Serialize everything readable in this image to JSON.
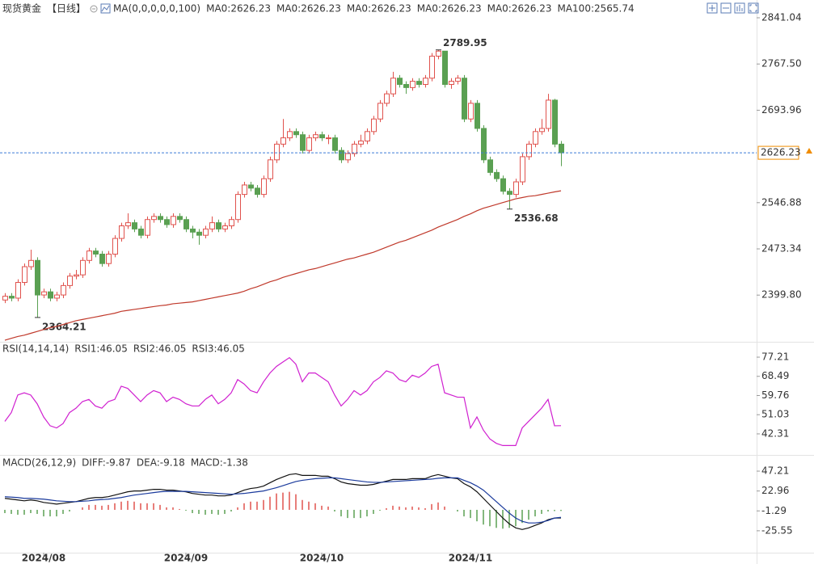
{
  "chart_data": [
    {
      "type": "candlestick",
      "header": [
        {
          "text": "现货黄金",
          "color": "#222222"
        },
        {
          "text": "【日线】",
          "color": "#f08c00"
        },
        {
          "text": "MA(0,0,0,0,0,100)",
          "color": "#222222"
        },
        {
          "text": "MA0:2626.23",
          "color": "#222222"
        },
        {
          "text": "MA0:2626.23",
          "color": "#1a3a9c"
        },
        {
          "text": "MA0:2626.23",
          "color": "#e040e0"
        },
        {
          "text": "MA0:2626.23",
          "color": "#f0a030"
        },
        {
          "text": "MA0:2626.23",
          "color": "#888888"
        },
        {
          "text": "MA100:2565.74",
          "color": "#d9534f"
        }
      ],
      "categories": [
        null,
        null,
        null,
        null,
        null,
        null,
        "2024/08",
        null,
        null,
        null,
        null,
        null,
        null,
        null,
        null,
        null,
        null,
        null,
        null,
        null,
        null,
        null,
        null,
        null,
        null,
        null,
        null,
        null,
        "2024/09",
        null,
        null,
        null,
        null,
        null,
        null,
        null,
        null,
        null,
        null,
        null,
        null,
        null,
        null,
        null,
        null,
        null,
        null,
        null,
        null,
        "2024/10",
        null,
        null,
        null,
        null,
        null,
        null,
        null,
        null,
        null,
        null,
        null,
        null,
        null,
        null,
        null,
        null,
        null,
        null,
        null,
        null,
        null,
        null,
        "2024/11",
        null,
        null,
        null,
        null,
        null,
        null,
        null,
        null,
        null,
        null,
        null,
        null,
        null,
        null
      ],
      "open": [
        2392,
        2398,
        2395,
        2420,
        2445,
        2455,
        2400,
        2405,
        2395,
        2400,
        2415,
        2430,
        2432,
        2455,
        2470,
        2465,
        2450,
        2465,
        2490,
        2510,
        2515,
        2505,
        2495,
        2520,
        2525,
        2520,
        2512,
        2525,
        2520,
        2505,
        2500,
        2495,
        2505,
        2515,
        2505,
        2510,
        2520,
        2560,
        2575,
        2570,
        2560,
        2585,
        2615,
        2640,
        2650,
        2660,
        2655,
        2630,
        2650,
        2655,
        2650,
        2650,
        2630,
        2615,
        2625,
        2640,
        2645,
        2660,
        2680,
        2705,
        2720,
        2745,
        2735,
        2730,
        2740,
        2735,
        2745,
        2780,
        2788,
        2735,
        2740,
        2745,
        2680,
        2705,
        2665,
        2615,
        2595,
        2585,
        2565,
        2560,
        2580,
        2620,
        2640,
        2660,
        2665,
        2710,
        2640
      ],
      "high": [
        2403,
        2403,
        2425,
        2450,
        2472,
        2460,
        2410,
        2410,
        2405,
        2420,
        2435,
        2440,
        2460,
        2475,
        2475,
        2470,
        2470,
        2495,
        2515,
        2530,
        2520,
        2510,
        2525,
        2530,
        2530,
        2525,
        2530,
        2530,
        2525,
        2510,
        2505,
        2510,
        2525,
        2520,
        2515,
        2525,
        2565,
        2580,
        2580,
        2575,
        2590,
        2620,
        2645,
        2680,
        2665,
        2665,
        2660,
        2655,
        2660,
        2660,
        2655,
        2655,
        2635,
        2630,
        2645,
        2655,
        2665,
        2685,
        2710,
        2725,
        2755,
        2750,
        2740,
        2745,
        2745,
        2750,
        2785,
        2789.95,
        2788,
        2745,
        2750,
        2750,
        2710,
        2710,
        2670,
        2620,
        2600,
        2590,
        2570,
        2585,
        2625,
        2645,
        2665,
        2680,
        2720,
        2712,
        2645
      ],
      "low": [
        2387,
        2390,
        2390,
        2415,
        2440,
        2364.21,
        2395,
        2390,
        2390,
        2395,
        2410,
        2425,
        2427,
        2450,
        2460,
        2445,
        2445,
        2460,
        2485,
        2505,
        2500,
        2490,
        2490,
        2515,
        2515,
        2507,
        2507,
        2515,
        2500,
        2490,
        2480,
        2490,
        2500,
        2500,
        2500,
        2505,
        2515,
        2555,
        2565,
        2555,
        2555,
        2580,
        2610,
        2635,
        2645,
        2650,
        2625,
        2625,
        2645,
        2645,
        2640,
        2625,
        2610,
        2610,
        2620,
        2635,
        2640,
        2655,
        2675,
        2700,
        2715,
        2730,
        2720,
        2725,
        2730,
        2730,
        2740,
        2775,
        2730,
        2728,
        2735,
        2675,
        2675,
        2660,
        2610,
        2590,
        2580,
        2560,
        2536.68,
        2555,
        2575,
        2615,
        2635,
        2655,
        2660,
        2635,
        2605
      ],
      "close": [
        2398,
        2395,
        2420,
        2445,
        2455,
        2400,
        2405,
        2395,
        2400,
        2415,
        2430,
        2432,
        2455,
        2470,
        2465,
        2450,
        2465,
        2490,
        2510,
        2515,
        2505,
        2495,
        2520,
        2525,
        2520,
        2512,
        2525,
        2520,
        2505,
        2500,
        2495,
        2505,
        2515,
        2505,
        2510,
        2520,
        2560,
        2575,
        2570,
        2560,
        2585,
        2615,
        2640,
        2650,
        2660,
        2655,
        2630,
        2650,
        2655,
        2650,
        2650,
        2630,
        2615,
        2625,
        2640,
        2645,
        2660,
        2680,
        2705,
        2720,
        2745,
        2735,
        2730,
        2740,
        2735,
        2745,
        2780,
        2788,
        2735,
        2740,
        2745,
        2680,
        2705,
        2665,
        2615,
        2595,
        2585,
        2565,
        2560,
        2580,
        2620,
        2640,
        2660,
        2665,
        2710,
        2640,
        2626.23
      ],
      "up_color": "#e0524d",
      "down_color": "#5aa052",
      "price_line_color": "#3c7bd6",
      "price_label_color": "#f08c00",
      "series": [
        {
          "name": "MA100",
          "color": "#c0392b",
          "values": [
            2328,
            2331,
            2334,
            2336,
            2339,
            2342,
            2345,
            2348,
            2350,
            2353,
            2356,
            2359,
            2361,
            2363,
            2365,
            2367,
            2369,
            2371,
            2374,
            2375.5,
            2377,
            2378.5,
            2380,
            2381.5,
            2383,
            2384,
            2386,
            2387,
            2388,
            2389,
            2391,
            2393,
            2395,
            2397,
            2399,
            2401,
            2403,
            2406,
            2410,
            2413,
            2417,
            2421,
            2424,
            2428,
            2431,
            2434,
            2437,
            2440,
            2442,
            2445,
            2448,
            2451,
            2454,
            2457,
            2459,
            2462,
            2465,
            2468,
            2472,
            2476,
            2480,
            2484,
            2487,
            2491,
            2495,
            2499,
            2503,
            2508,
            2512,
            2516,
            2520,
            2525,
            2529,
            2534,
            2538,
            2541,
            2544,
            2547,
            2550,
            2553,
            2555,
            2557,
            2558,
            2560,
            2562,
            2564,
            2565.74
          ]
        }
      ],
      "annotations": [
        {
          "value": 2789.95,
          "color": "#d9534f"
        },
        {
          "value": 2536.68,
          "color": "#5aa052"
        },
        {
          "value": 2364.21,
          "color": "#5aa052"
        }
      ],
      "ylim": [
        2326.8,
        2862.9
      ],
      "yticks": [
        2841.04,
        {
          "value": 2767.5,
          "label": "2767.50"
        },
        2693.96,
        2546.88,
        2473.34,
        {
          "value": 2399.8,
          "label": "2399.80"
        }
      ]
    },
    {
      "type": "line",
      "header": [
        {
          "text": "RSI(14,14,14)",
          "color": "#222222"
        },
        {
          "text": "RSI1:46.05",
          "color": "#222222"
        },
        {
          "text": "RSI2:46.05",
          "color": "#1a3a9c"
        },
        {
          "text": "RSI3:46.05",
          "color": "#e040e0"
        }
      ],
      "series": [
        {
          "name": "RSI1",
          "color": "#d020d0",
          "values": [
            48,
            52,
            60,
            61,
            60,
            56,
            50,
            46,
            45,
            47,
            52,
            54,
            57,
            58,
            55,
            54,
            57,
            58,
            64,
            63,
            60,
            57,
            60,
            62,
            61,
            57,
            59,
            58,
            56,
            55,
            55,
            58,
            60,
            56,
            58,
            61,
            67,
            65,
            62,
            61,
            66,
            70,
            73,
            75,
            77,
            74,
            66,
            70,
            70,
            68,
            66,
            60,
            55,
            58,
            62,
            60,
            62,
            66,
            68,
            71,
            70,
            67,
            66,
            69,
            68,
            70,
            73,
            74,
            61,
            60,
            59,
            59,
            45,
            50,
            44,
            40,
            38,
            37,
            37,
            37,
            45,
            48,
            51,
            54,
            58,
            46,
            46.05
          ]
        }
      ],
      "ylim": [
        33.84,
        83.47
      ],
      "yticks": [
        77.21,
        68.49,
        59.76,
        51.03,
        42.31
      ]
    },
    {
      "type": "line",
      "header": [
        {
          "text": "MACD(26,12,9)",
          "color": "#222222"
        },
        {
          "text": "DIFF:-9.87",
          "color": "#222222"
        },
        {
          "text": "DEA:-9.18",
          "color": "#1a3a9c"
        },
        {
          "text": "MACD:-1.38",
          "color": "#e040e0"
        }
      ],
      "series": [
        {
          "name": "MACD",
          "style": "bar",
          "up_color": "#e0524d",
          "down_color": "#5aa052",
          "values": [
            -4,
            -5,
            -6,
            -6,
            -4,
            -5,
            -8,
            -8,
            -8,
            -5,
            -2,
            0,
            3,
            6,
            6,
            5,
            6,
            8,
            10,
            11,
            10,
            8,
            8,
            8,
            6,
            3,
            3,
            1,
            -1,
            -4,
            -5,
            -6,
            -5,
            -6,
            -5,
            -2,
            3,
            8,
            10,
            10,
            12,
            16,
            20,
            21,
            22,
            19,
            12,
            10,
            8,
            5,
            4,
            -2,
            -8,
            -10,
            -10,
            -10,
            -8,
            -5,
            -1,
            2,
            5,
            4,
            3,
            4,
            3,
            2,
            7,
            9,
            4,
            0,
            -2,
            -8,
            -10,
            -14,
            -18,
            -20,
            -22,
            -23,
            -22,
            -20,
            -16,
            -12,
            -8,
            -5,
            -2,
            -1.5,
            -1.38
          ]
        },
        {
          "name": "DIFF",
          "color": "#111111",
          "values": [
            14,
            13,
            12,
            11,
            12,
            11,
            9,
            8,
            7,
            8,
            9,
            10,
            12,
            14,
            15,
            15,
            16,
            18,
            20,
            22,
            23,
            23,
            24,
            25,
            25,
            24,
            24,
            23,
            22,
            20,
            19,
            18,
            18,
            17,
            17,
            18,
            21,
            24,
            26,
            27,
            29,
            33,
            37,
            40,
            43,
            44,
            42,
            42,
            42,
            41,
            41,
            38,
            34,
            32,
            31,
            30,
            30,
            31,
            33,
            35,
            37,
            37,
            37,
            38,
            38,
            38,
            41,
            43,
            41,
            39,
            38,
            32,
            28,
            22,
            14,
            6,
            -2,
            -10,
            -17,
            -22,
            -24,
            -22,
            -19,
            -16,
            -12,
            -10,
            -9.87
          ]
        },
        {
          "name": "DEA",
          "color": "#1a3a9c",
          "values": [
            16,
            15.5,
            15,
            14,
            14,
            13.5,
            13,
            12,
            11,
            10.5,
            10,
            10,
            10.5,
            11,
            12,
            12.5,
            13,
            14,
            15,
            16.5,
            18,
            19,
            20,
            21,
            22,
            22.5,
            22.5,
            22.5,
            22.5,
            22,
            21.5,
            21,
            20.5,
            20,
            19.5,
            19,
            19.5,
            20,
            21,
            22,
            23,
            25,
            27,
            29.5,
            32,
            34.5,
            36,
            37,
            38,
            38.5,
            39,
            39,
            38,
            37,
            36,
            35,
            34,
            33.5,
            33.5,
            34,
            34.5,
            35,
            35.5,
            36,
            36.5,
            37,
            37.5,
            38.5,
            39,
            39,
            39,
            36,
            33,
            29,
            24,
            17,
            10,
            3,
            -4,
            -10,
            -14,
            -16,
            -16,
            -15,
            -13,
            -10,
            -9.18
          ]
        }
      ],
      "ylim": [
        -50.3,
        65.0
      ],
      "yticks": [
        47.21,
        22.96,
        -1.29,
        -25.55
      ]
    }
  ]
}
